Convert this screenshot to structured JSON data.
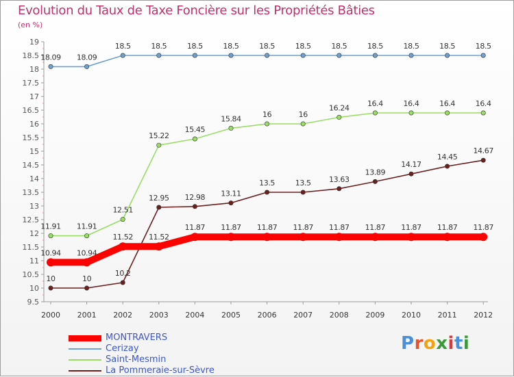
{
  "page": {
    "title": "Evolution du Taux de Taxe Foncière sur les Propriétés Bâties",
    "subtitle": "(en %)"
  },
  "chart_data": {
    "type": "line",
    "title": "Evolution du Taux de Taxe Foncière sur les Propriétés Bâties",
    "subtitle": "(en %)",
    "xlabel": "",
    "ylabel": "",
    "categories": [
      "2000",
      "2001",
      "2002",
      "2003",
      "2004",
      "2005",
      "2006",
      "2007",
      "2008",
      "2009",
      "2010",
      "2011",
      "2012"
    ],
    "ylim": [
      9.5,
      19
    ],
    "y_ticks": [
      9.5,
      10,
      10.5,
      11,
      11.5,
      12,
      12.5,
      13,
      13.5,
      14,
      14.5,
      15,
      15.5,
      16,
      16.5,
      17,
      17.5,
      18,
      18.5,
      19
    ],
    "grid": false,
    "legend_position": "bottom-left",
    "series": [
      {
        "name": "MONTRAVERS",
        "color": "#ff0000",
        "values": [
          10.94,
          10.94,
          11.52,
          11.52,
          11.87,
          11.87,
          11.87,
          11.87,
          11.87,
          11.87,
          11.87,
          11.87,
          11.87
        ],
        "labels": [
          "10.94",
          "10.94",
          "11.52",
          "11.52",
          "11.87",
          "11.87",
          "11.87",
          "11.87",
          "11.87",
          "11.87",
          "11.87",
          "11.87",
          "11.87"
        ]
      },
      {
        "name": "Cerizay",
        "color": "#6fa0d0",
        "values": [
          18.09,
          18.09,
          18.5,
          18.5,
          18.5,
          18.5,
          18.5,
          18.5,
          18.5,
          18.5,
          18.5,
          18.5,
          18.5
        ],
        "labels": [
          "18.09",
          "18.09",
          "18.5",
          "18.5",
          "18.5",
          "18.5",
          "18.5",
          "18.5",
          "18.5",
          "18.5",
          "18.5",
          "18.5",
          "18.5"
        ]
      },
      {
        "name": "Saint-Mesmin",
        "color": "#99dd66",
        "values": [
          11.91,
          11.91,
          12.51,
          15.22,
          15.45,
          15.84,
          16,
          16,
          16.24,
          16.4,
          16.4,
          16.4,
          16.4
        ],
        "labels": [
          "11.91",
          "11.91",
          "12.51",
          "15.22",
          "15.45",
          "15.84",
          "16",
          "16",
          "16.24",
          "16.4",
          "16.4",
          "16.4",
          "16.4"
        ]
      },
      {
        "name": "La Pommeraie-sur-Sèvre",
        "color": "#6b1f1f",
        "values": [
          10,
          10,
          10.2,
          12.95,
          12.98,
          13.11,
          13.5,
          13.5,
          13.63,
          13.89,
          14.17,
          14.45,
          14.67
        ],
        "labels": [
          "10",
          "10",
          "10.2",
          "12.95",
          "12.98",
          "13.11",
          "13.5",
          "13.5",
          "13.63",
          "13.89",
          "14.17",
          "14.45",
          "14.67"
        ]
      }
    ]
  },
  "legend": {
    "items": [
      {
        "label": "MONTRAVERS",
        "color": "#ff0000"
      },
      {
        "label": "Cerizay",
        "color": "#6fa0d0"
      },
      {
        "label": "Saint-Mesmin",
        "color": "#99dd66"
      },
      {
        "label": "La Pommeraie-sur-Sèvre",
        "color": "#6b1f1f"
      }
    ]
  },
  "logo": {
    "letters": [
      "P",
      "r",
      "o",
      "x",
      "i",
      "t",
      "i"
    ],
    "colors": [
      "#4a90d9",
      "#e8532f",
      "#f2a20d",
      "#3a9a3a",
      "#d63a3a",
      "#4a90d9",
      "#3a9a3a"
    ]
  }
}
